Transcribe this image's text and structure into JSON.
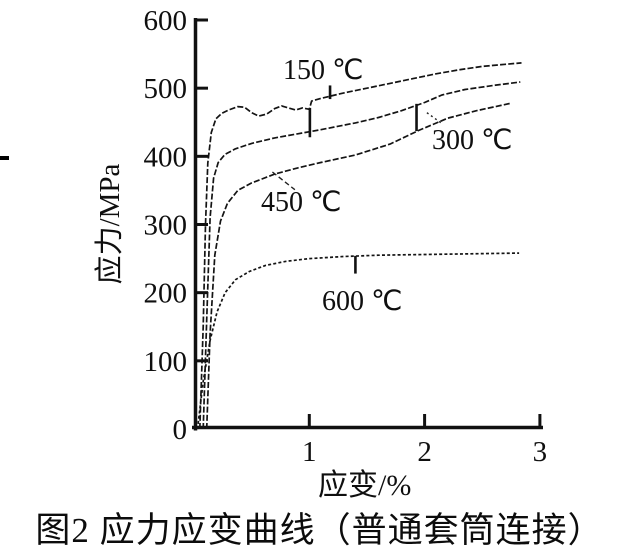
{
  "figure": {
    "caption": "图2 应力应变曲线（普通套筒连接）"
  },
  "chart_data": {
    "type": "line",
    "title": "",
    "xlabel": "应变/%",
    "ylabel": "应力/MPa",
    "xlim": [
      0,
      3
    ],
    "ylim": [
      0,
      600
    ],
    "grid": false,
    "legend_position": "inline-annotations",
    "x_ticks": [
      {
        "value": 1,
        "label": "1"
      },
      {
        "value": 2,
        "label": "2"
      },
      {
        "value": 3,
        "label": "3"
      }
    ],
    "y_ticks": [
      {
        "value": 0,
        "label": "0"
      },
      {
        "value": 100,
        "label": "100"
      },
      {
        "value": 200,
        "label": "200"
      },
      {
        "value": 300,
        "label": "300"
      },
      {
        "value": 400,
        "label": "400"
      },
      {
        "value": 500,
        "label": "500"
      },
      {
        "value": 600,
        "label": "600"
      }
    ],
    "series": [
      {
        "id": "150c",
        "name": "150 ℃",
        "label": "150 ℃",
        "points": [
          [
            0.05,
            0
          ],
          [
            0.08,
            150
          ],
          [
            0.1,
            300
          ],
          [
            0.12,
            390
          ],
          [
            0.15,
            435
          ],
          [
            0.19,
            455
          ],
          [
            0.24,
            463
          ],
          [
            0.3,
            468
          ],
          [
            0.38,
            473
          ],
          [
            0.44,
            472
          ],
          [
            0.5,
            464
          ],
          [
            0.56,
            459
          ],
          [
            0.63,
            462
          ],
          [
            0.7,
            470
          ],
          [
            0.76,
            474
          ],
          [
            0.82,
            471
          ],
          [
            0.88,
            468
          ],
          [
            0.94,
            471
          ],
          [
            1.0,
            469
          ],
          [
            1.02,
            481
          ],
          [
            1.1,
            485
          ],
          [
            1.3,
            493
          ],
          [
            1.5,
            500
          ],
          [
            1.7,
            507
          ],
          [
            1.9,
            514
          ],
          [
            2.1,
            521
          ],
          [
            2.3,
            527
          ],
          [
            2.5,
            532
          ],
          [
            2.7,
            535
          ],
          [
            2.84,
            537
          ]
        ]
      },
      {
        "id": "300c",
        "name": "300 ℃",
        "label": "300 ℃",
        "points": [
          [
            0.08,
            0
          ],
          [
            0.11,
            160
          ],
          [
            0.14,
            310
          ],
          [
            0.17,
            368
          ],
          [
            0.21,
            391
          ],
          [
            0.27,
            403
          ],
          [
            0.36,
            411
          ],
          [
            0.5,
            419
          ],
          [
            0.7,
            427
          ],
          [
            0.9,
            433
          ],
          [
            1.1,
            439
          ],
          [
            1.4,
            449
          ],
          [
            1.6,
            457
          ],
          [
            1.8,
            467
          ],
          [
            2.0,
            479
          ],
          [
            2.15,
            490
          ],
          [
            2.35,
            498
          ],
          [
            2.6,
            504
          ],
          [
            2.83,
            509
          ]
        ]
      },
      {
        "id": "450c",
        "name": "450 ℃",
        "label": "450 ℃",
        "points": [
          [
            0.11,
            0
          ],
          [
            0.14,
            140
          ],
          [
            0.18,
            255
          ],
          [
            0.23,
            305
          ],
          [
            0.29,
            331
          ],
          [
            0.38,
            350
          ],
          [
            0.5,
            361
          ],
          [
            0.7,
            374
          ],
          [
            0.9,
            383
          ],
          [
            1.1,
            391
          ],
          [
            1.4,
            402
          ],
          [
            1.7,
            418
          ],
          [
            1.95,
            438
          ],
          [
            2.2,
            456
          ],
          [
            2.45,
            467
          ],
          [
            2.75,
            478
          ]
        ]
      },
      {
        "id": "600c",
        "name": "600 ℃",
        "label": "600 ℃",
        "points": [
          [
            0.03,
            0
          ],
          [
            0.08,
            70
          ],
          [
            0.14,
            130
          ],
          [
            0.2,
            172
          ],
          [
            0.27,
            200
          ],
          [
            0.36,
            219
          ],
          [
            0.48,
            231
          ],
          [
            0.62,
            240
          ],
          [
            0.8,
            246
          ],
          [
            1.0,
            250
          ],
          [
            1.3,
            253
          ],
          [
            1.6,
            255
          ],
          [
            2.0,
            256
          ],
          [
            2.4,
            257
          ],
          [
            2.82,
            258
          ]
        ]
      }
    ],
    "markers": [
      {
        "on": "150c",
        "x": 1.18,
        "y1": 484,
        "y2": 504
      },
      {
        "on": "300c",
        "x": 1.005,
        "y1": 428,
        "y2": 471
      },
      {
        "on": "300c",
        "x": 1.93,
        "y1": 437,
        "y2": 477
      },
      {
        "on": "600c",
        "x": 1.4,
        "y1": 228,
        "y2": 254
      }
    ],
    "leaders": [
      {
        "id": "450c",
        "from": [
          0.68,
          377
        ],
        "to": [
          0.875,
          351
        ]
      },
      {
        "id": "300c",
        "from": [
          2.02,
          464
        ],
        "to": [
          2.16,
          447
        ]
      }
    ]
  }
}
